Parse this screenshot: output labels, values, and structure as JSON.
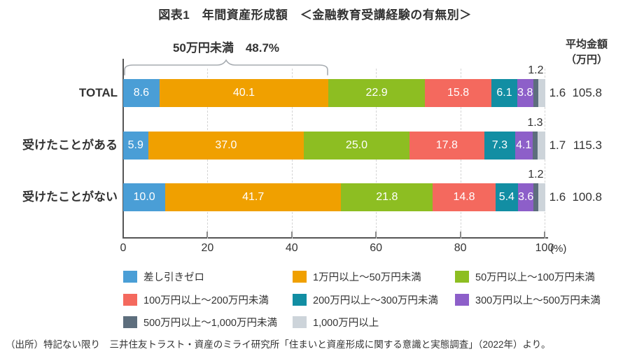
{
  "title": "図表1　年間資産形成額　＜金融教育受講経験の有無別＞",
  "annotation": {
    "label": "50万円未満　48.7%"
  },
  "avg_header": {
    "line1": "平均金額",
    "line2": "（万円）"
  },
  "axis": {
    "ticks": [
      0,
      20,
      40,
      60,
      80,
      100
    ],
    "unit": "(%)"
  },
  "chart_data": {
    "type": "bar",
    "stacked": true,
    "orientation": "horizontal",
    "title": "図表1　年間資産形成額　＜金融教育受講経験の有無別＞",
    "xlim": [
      0,
      100
    ],
    "grid": true,
    "categories": [
      "TOTAL",
      "受けたことがある",
      "受けたことがない"
    ],
    "series": [
      {
        "name": "差し引きゼロ",
        "color": "#4a9ed6",
        "values": [
          8.6,
          5.9,
          10.0
        ]
      },
      {
        "name": "1万円以上～50万円未満",
        "color": "#f0a000",
        "values": [
          40.1,
          37.0,
          41.7
        ]
      },
      {
        "name": "50万円以上～100万円未満",
        "color": "#8dbe22",
        "values": [
          22.9,
          25.0,
          21.8
        ]
      },
      {
        "name": "100万円以上～200万円未満",
        "color": "#f4695e",
        "values": [
          15.8,
          17.8,
          14.8
        ]
      },
      {
        "name": "200万円以上～300万円未満",
        "color": "#128ea3",
        "values": [
          6.1,
          7.3,
          5.4
        ]
      },
      {
        "name": "300万円以上～500万円未満",
        "color": "#8d5fc9",
        "values": [
          3.8,
          4.1,
          3.6
        ]
      },
      {
        "name": "500万円以上～1,000万円未満",
        "color": "#5d6e7d",
        "values": [
          1.2,
          1.3,
          1.2
        ]
      },
      {
        "name": "1,000万円以上",
        "color": "#cdd4da",
        "values": [
          1.6,
          1.7,
          1.6
        ]
      }
    ],
    "averages": [
      105.8,
      115.3,
      100.8
    ],
    "annotation": "50万円未満　48.7%",
    "legend_position": "bottom"
  },
  "footer": "（出所）特記ない限り　三井住友トラスト・資産のミライ研究所「住まいと資産形成に関する意識と実態調査」（2022年）より。"
}
